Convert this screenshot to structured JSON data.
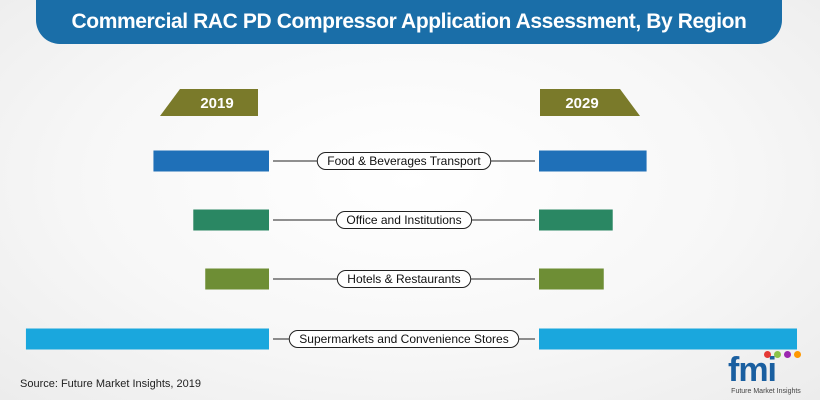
{
  "title": "Commercial RAC PD Compressor Application Assessment, By Region",
  "source": "Source: Future Market Insights, 2019",
  "logo": {
    "mark": "fmi",
    "subtitle": "Future Market Insights"
  },
  "colors": {
    "title_bg": "#1a6ea8",
    "year_tab": "#7a7a2a",
    "bars": [
      "#1f70b8",
      "#2a8763",
      "#6e8e35",
      "#1aa7dd"
    ],
    "logo_dots": [
      "#e53935",
      "#8bc34a",
      "#9c27b0",
      "#ff9800"
    ]
  },
  "chart_data": {
    "type": "bar",
    "layout": "butterfly",
    "title": "Commercial RAC PD Compressor Application Assessment, By Region",
    "years": [
      "2019",
      "2029"
    ],
    "categories": [
      "Food & Beverages Transport",
      "Office and Institutions",
      "Hotels & Restaurants",
      "Supermarkets and Convenience Stores"
    ],
    "series": [
      {
        "name": "2019",
        "values": [
          116,
          76,
          64,
          244
        ]
      },
      {
        "name": "2029",
        "values": [
          108,
          74,
          65,
          259
        ]
      }
    ],
    "xlim": [
      0,
      260
    ],
    "grid": false,
    "legend": "none"
  }
}
